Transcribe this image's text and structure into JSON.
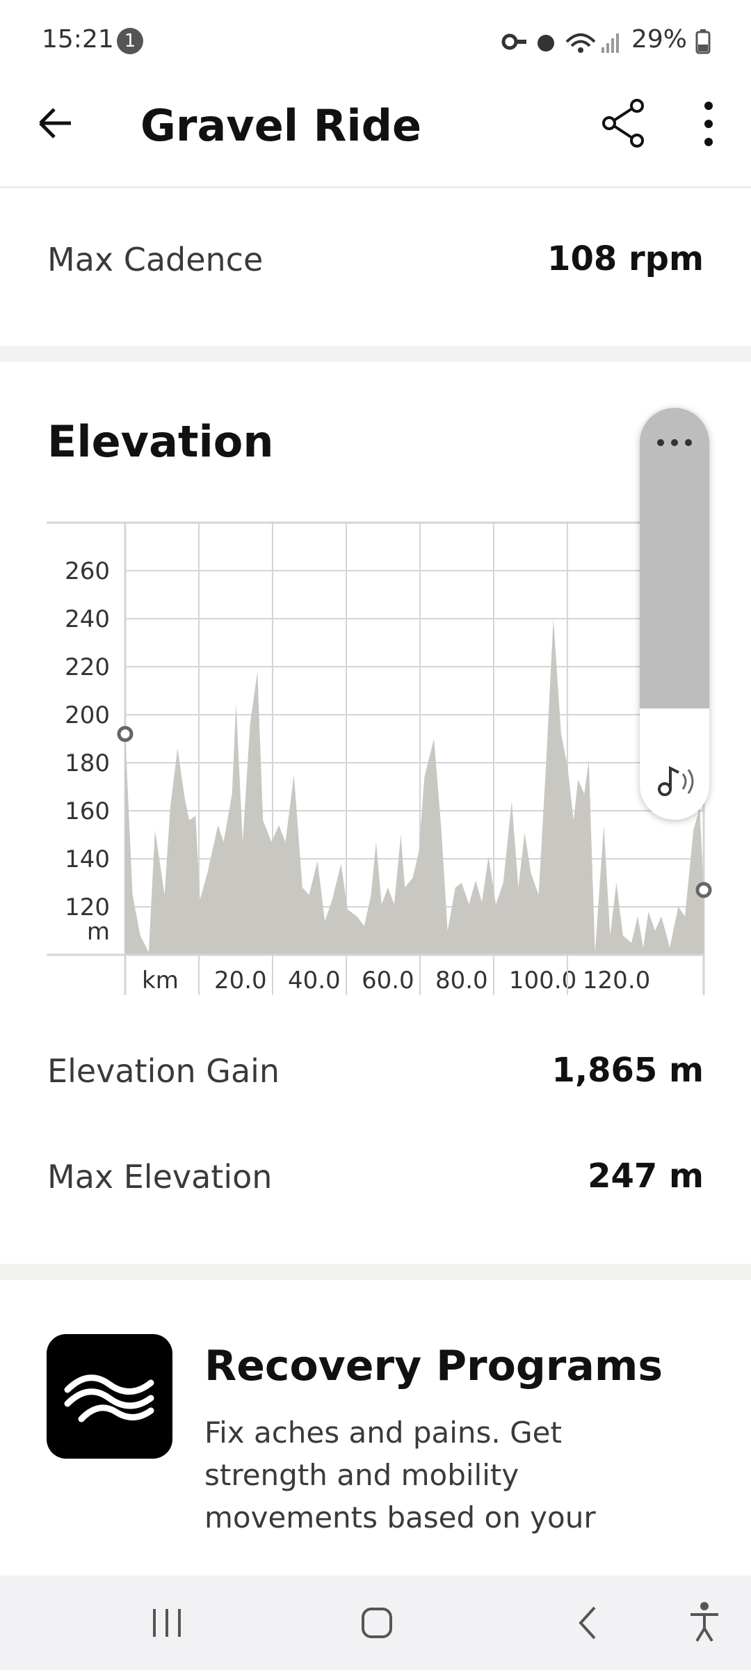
{
  "status_bar": {
    "time": "15:21",
    "notification_count": "1",
    "battery": "29%"
  },
  "header": {
    "title": "Gravel Ride"
  },
  "stats": [
    {
      "label": "Max Cadence",
      "value": "108 rpm"
    }
  ],
  "elevation": {
    "title": "Elevation",
    "chart_data": {
      "type": "area",
      "x_label": "km",
      "y_label": "m",
      "color": "#c9c7c2",
      "grid": true,
      "x": [
        0,
        2.0,
        4.1,
        6.4,
        8.1,
        10.7,
        12.2,
        14.2,
        16.2,
        17.4,
        19.1,
        20.3,
        22.3,
        25.2,
        26.7,
        29.0,
        30.1,
        31.9,
        33.9,
        35.9,
        37.4,
        39.7,
        41.7,
        43.5,
        45.8,
        48.1,
        49.9,
        52.2,
        54.2,
        56.2,
        58.6,
        60.3,
        62.9,
        64.9,
        66.7,
        68.1,
        69.6,
        71.3,
        73.0,
        74.8,
        75.9,
        78.0,
        79.7,
        81.2,
        83.8,
        85.8,
        87.5,
        89.6,
        91.3,
        93.3,
        95.1,
        96.8,
        98.6,
        100.6,
        102.6,
        104.9,
        106.7,
        108.4,
        110.1,
        112.2,
        114.2,
        116.2,
        118.3,
        120.0,
        121.7,
        122.9,
        124.6,
        125.8,
        127.5,
        129.9,
        131.6,
        133.3,
        135.1,
        137.4,
        139.1,
        140.6,
        142.0,
        143.8,
        145.5,
        147.8,
        150.1,
        151.9,
        154.2,
        155.9,
        157
      ],
      "values": [
        192,
        125,
        108,
        101,
        152,
        125,
        161,
        186,
        165,
        156,
        158,
        123,
        134,
        154,
        147,
        167,
        205,
        147,
        196,
        218,
        156,
        147,
        154,
        147,
        175,
        128,
        125,
        139,
        114,
        123,
        138,
        119,
        116,
        112,
        125,
        147,
        121,
        128,
        121,
        150,
        128,
        132,
        143,
        174,
        190,
        152,
        110,
        128,
        130,
        121,
        131,
        122,
        141,
        121,
        130,
        164,
        128,
        151,
        134,
        125,
        179,
        240,
        192,
        179,
        156,
        173,
        167,
        181,
        101,
        154,
        108,
        130,
        108,
        105,
        116,
        103,
        118,
        110,
        116,
        103,
        120,
        116,
        152,
        161,
        127
      ],
      "xlim": [
        0,
        157
      ],
      "ylim": [
        100,
        280
      ],
      "xticks": [
        {
          "value": 20,
          "label": "20.0"
        },
        {
          "value": 40,
          "label": "40.0"
        },
        {
          "value": 60,
          "label": "60.0"
        },
        {
          "value": 80,
          "label": "80.0"
        },
        {
          "value": 100,
          "label": "100.0"
        },
        {
          "value": 120,
          "label": "120.0"
        }
      ],
      "yticks": [
        120,
        140,
        160,
        180,
        200,
        220,
        240,
        260
      ]
    },
    "stats": [
      {
        "label": "Elevation Gain",
        "value": "1,865 m"
      },
      {
        "label": "Max Elevation",
        "value": "247 m"
      }
    ]
  },
  "promo": {
    "title": "Recovery Programs",
    "description": [
      "Fix aches and pains. Get",
      "strength and mobility",
      "movements based on your"
    ]
  }
}
